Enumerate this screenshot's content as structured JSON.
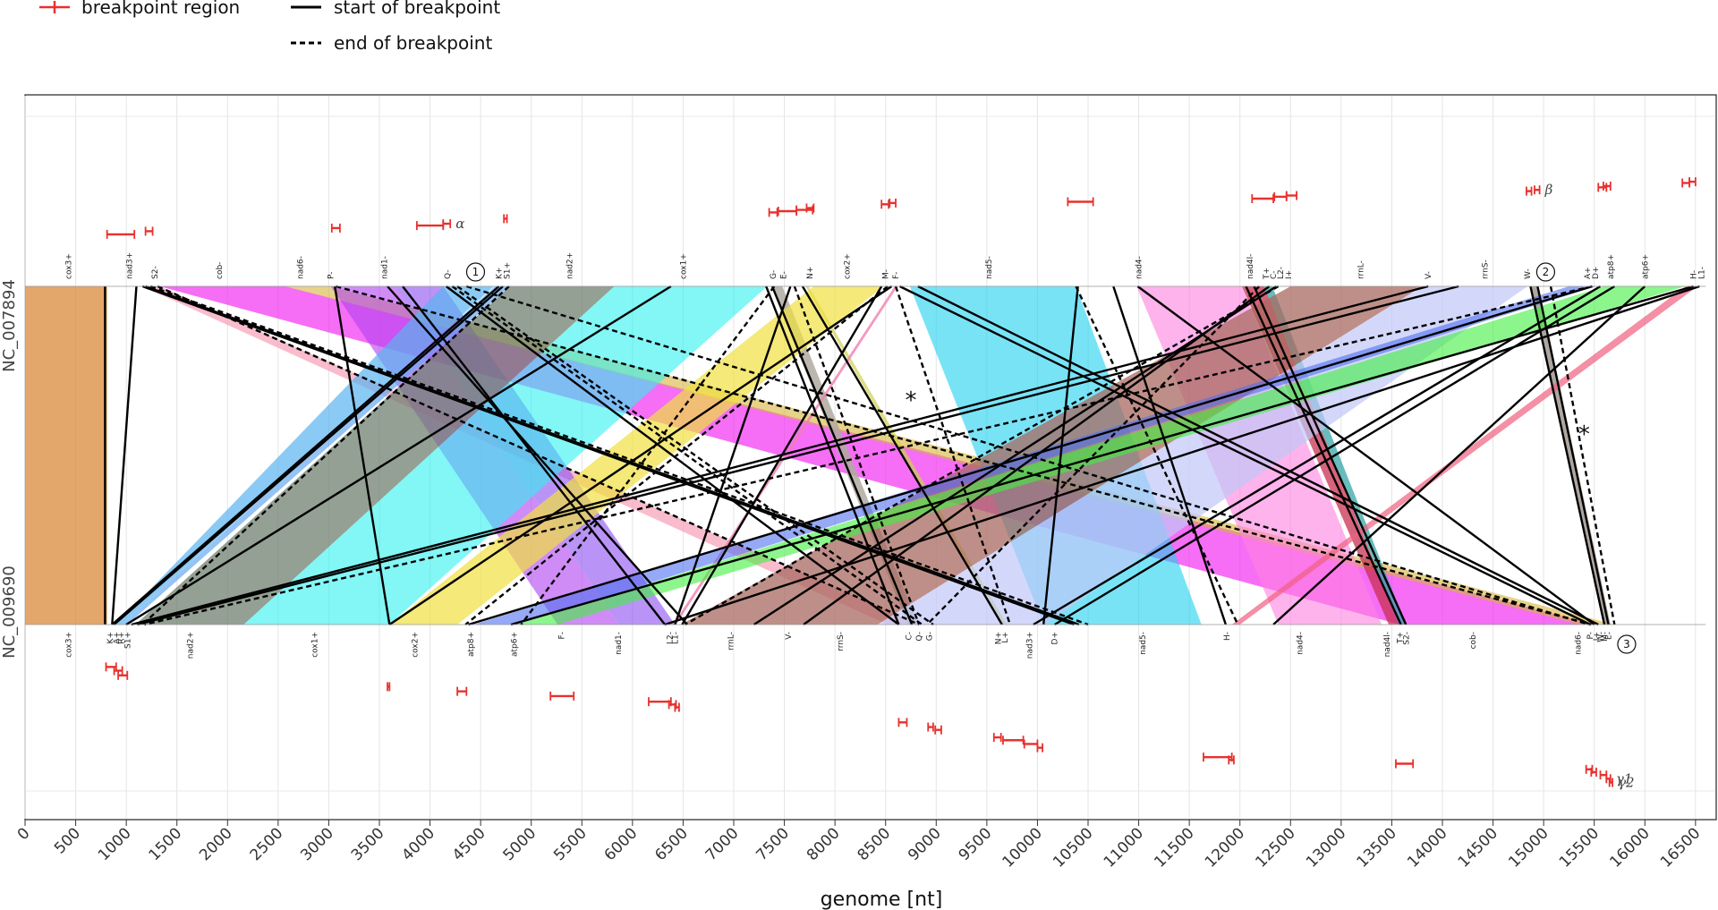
{
  "chart_data": {
    "type": "comparative-genome-map",
    "xlabel": "genome [nt]",
    "xlim": [
      0,
      16600
    ],
    "xticks": [
      0,
      500,
      1000,
      1500,
      2000,
      2500,
      3000,
      3500,
      4000,
      4500,
      5000,
      5500,
      6000,
      6500,
      7000,
      7500,
      8000,
      8500,
      9000,
      9500,
      10000,
      10500,
      11000,
      11500,
      12000,
      12500,
      13000,
      13500,
      14000,
      14500,
      15000,
      15500,
      16000,
      16500
    ],
    "legend": [
      {
        "name": "breakpoint region",
        "style": "red-errorbar"
      },
      {
        "name": "start of breakpoint",
        "style": "solid"
      },
      {
        "name": "end of breakpoint",
        "style": "dashed"
      }
    ],
    "genomes": {
      "top": "NC_007894",
      "bottom": "NC_009690"
    },
    "top_genes": [
      {
        "label": "cox3+",
        "pos": 430
      },
      {
        "label": "nad3+",
        "pos": 1030
      },
      {
        "label": "S2-",
        "pos": 1280
      },
      {
        "label": "cob-",
        "pos": 1920
      },
      {
        "label": "nad6-",
        "pos": 2720
      },
      {
        "label": "P-",
        "pos": 3020
      },
      {
        "label": "nad1-",
        "pos": 3550
      },
      {
        "label": "Q-",
        "pos": 4170
      },
      {
        "label": "K+",
        "pos": 4680
      },
      {
        "label": "S1+",
        "pos": 4760
      },
      {
        "label": "nad2+",
        "pos": 5380
      },
      {
        "label": "cox1+",
        "pos": 6500
      },
      {
        "label": "G-",
        "pos": 7390
      },
      {
        "label": "E-",
        "pos": 7490
      },
      {
        "label": "N+",
        "pos": 7750
      },
      {
        "label": "cox2+",
        "pos": 8120
      },
      {
        "label": "M-",
        "pos": 8500
      },
      {
        "label": "F-",
        "pos": 8600
      },
      {
        "label": "nad5-",
        "pos": 9520
      },
      {
        "label": "nad4-",
        "pos": 11000
      },
      {
        "label": "nad4l-",
        "pos": 12100
      },
      {
        "label": "T+",
        "pos": 12260
      },
      {
        "label": "C-",
        "pos": 12330
      },
      {
        "label": "L2-",
        "pos": 12400
      },
      {
        "label": "I+",
        "pos": 12480
      },
      {
        "label": "rrnL-",
        "pos": 13190
      },
      {
        "label": "V-",
        "pos": 13860
      },
      {
        "label": "rrnS-",
        "pos": 14420
      },
      {
        "label": "W-",
        "pos": 14840
      },
      {
        "label": "A+",
        "pos": 15430
      },
      {
        "label": "D+",
        "pos": 15510
      },
      {
        "label": "atp8+",
        "pos": 15660
      },
      {
        "label": "atp6+",
        "pos": 16000
      },
      {
        "label": "H-",
        "pos": 16480
      },
      {
        "label": "L1-",
        "pos": 16560
      }
    ],
    "bottom_genes": [
      {
        "label": "cox3+",
        "pos": 430
      },
      {
        "label": "K+",
        "pos": 840
      },
      {
        "label": "A+",
        "pos": 900
      },
      {
        "label": "R+",
        "pos": 950
      },
      {
        "label": "S1+",
        "pos": 1010
      },
      {
        "label": "nad2+",
        "pos": 1630
      },
      {
        "label": "cox1+",
        "pos": 2860
      },
      {
        "label": "cox2+",
        "pos": 3850
      },
      {
        "label": "atp8+",
        "pos": 4400
      },
      {
        "label": "atp6+",
        "pos": 4830
      },
      {
        "label": "F-",
        "pos": 5300
      },
      {
        "label": "nad1-",
        "pos": 5860
      },
      {
        "label": "L2-",
        "pos": 6370
      },
      {
        "label": "L1-",
        "pos": 6420
      },
      {
        "label": "rrnL-",
        "pos": 6970
      },
      {
        "label": "V-",
        "pos": 7540
      },
      {
        "label": "rrnS-",
        "pos": 8050
      },
      {
        "label": "C-",
        "pos": 8730
      },
      {
        "label": "Q-",
        "pos": 8830
      },
      {
        "label": "G-",
        "pos": 8930
      },
      {
        "label": "N+",
        "pos": 9610
      },
      {
        "label": "L+",
        "pos": 9680
      },
      {
        "label": "nad3+",
        "pos": 9920
      },
      {
        "label": "D+",
        "pos": 10170
      },
      {
        "label": "nad5-",
        "pos": 11040
      },
      {
        "label": "H-",
        "pos": 11870
      },
      {
        "label": "nad4-",
        "pos": 12590
      },
      {
        "label": "nad4l-",
        "pos": 13450
      },
      {
        "label": "T+",
        "pos": 13580
      },
      {
        "label": "S2-",
        "pos": 13640
      },
      {
        "label": "cob-",
        "pos": 14300
      },
      {
        "label": "nad6-",
        "pos": 15340
      },
      {
        "label": "P-",
        "pos": 15460
      },
      {
        "label": "I+",
        "pos": 15520
      },
      {
        "label": "W-",
        "pos": 15560
      },
      {
        "label": "M-",
        "pos": 15600
      },
      {
        "label": "E-",
        "pos": 15640
      }
    ],
    "circled_markers": [
      {
        "label": "1",
        "track": "top",
        "pos": 4450
      },
      {
        "label": "2",
        "track": "top",
        "pos": 15020
      },
      {
        "label": "3",
        "track": "bottom",
        "pos": 15820
      }
    ],
    "star_markers": [
      {
        "label": "*",
        "pos": 8750,
        "level": 0.36
      },
      {
        "label": "*",
        "pos": 15400,
        "level": 0.46
      }
    ],
    "top_breakpoints": [
      {
        "x0": 810,
        "x1": 1080,
        "level": 0.83
      },
      {
        "x0": 1190,
        "x1": 1260,
        "level": 0.88
      },
      {
        "x0": 3030,
        "x1": 3110,
        "level": 0.93
      },
      {
        "x0": 3870,
        "x1": 4130,
        "level": 0.97
      },
      {
        "x0": 4130,
        "x1": 4200,
        "level": 1.0,
        "greek": "α"
      },
      {
        "x0": 4730,
        "x1": 4760,
        "level": 1.08
      },
      {
        "x0": 7350,
        "x1": 7430,
        "level": 1.18
      },
      {
        "x0": 7440,
        "x1": 7620,
        "level": 1.2
      },
      {
        "x0": 7620,
        "x1": 7780,
        "level": 1.22
      },
      {
        "x0": 7720,
        "x1": 7790,
        "level": 1.25
      },
      {
        "x0": 8460,
        "x1": 8530,
        "level": 1.31
      },
      {
        "x0": 8540,
        "x1": 8600,
        "level": 1.33
      },
      {
        "x0": 10300,
        "x1": 10550,
        "level": 1.35
      },
      {
        "x0": 12120,
        "x1": 12330,
        "level": 1.4
      },
      {
        "x0": 12340,
        "x1": 12460,
        "level": 1.43
      },
      {
        "x0": 12460,
        "x1": 12560,
        "level": 1.45
      },
      {
        "x0": 14830,
        "x1": 14880,
        "level": 1.52
      },
      {
        "x0": 14910,
        "x1": 14960,
        "level": 1.54,
        "greek": "β"
      },
      {
        "x0": 15540,
        "x1": 15620,
        "level": 1.58
      },
      {
        "x0": 15590,
        "x1": 15660,
        "level": 1.6
      },
      {
        "x0": 16370,
        "x1": 16440,
        "level": 1.65
      },
      {
        "x0": 16440,
        "x1": 16500,
        "level": 1.67
      }
    ],
    "bottom_breakpoints": [
      {
        "x0": 800,
        "x1": 900,
        "level": 0.07
      },
      {
        "x0": 880,
        "x1": 960,
        "level": 0.11
      },
      {
        "x0": 920,
        "x1": 1010,
        "level": 0.16
      },
      {
        "x0": 3580,
        "x1": 3600,
        "level": 0.28
      },
      {
        "x0": 4270,
        "x1": 4360,
        "level": 0.33
      },
      {
        "x0": 5190,
        "x1": 5420,
        "level": 0.38
      },
      {
        "x0": 6160,
        "x1": 6380,
        "level": 0.44
      },
      {
        "x0": 6360,
        "x1": 6430,
        "level": 0.47
      },
      {
        "x0": 6420,
        "x1": 6460,
        "level": 0.5
      },
      {
        "x0": 8630,
        "x1": 8710,
        "level": 0.66
      },
      {
        "x0": 8920,
        "x1": 8970,
        "level": 0.71
      },
      {
        "x0": 8990,
        "x1": 9050,
        "level": 0.74
      },
      {
        "x0": 9570,
        "x1": 9640,
        "level": 0.82
      },
      {
        "x0": 9660,
        "x1": 9860,
        "level": 0.85
      },
      {
        "x0": 9870,
        "x1": 10000,
        "level": 0.89
      },
      {
        "x0": 10000,
        "x1": 10050,
        "level": 0.93
      },
      {
        "x0": 11640,
        "x1": 11920,
        "level": 1.03
      },
      {
        "x0": 11890,
        "x1": 11940,
        "level": 1.06
      },
      {
        "x0": 13540,
        "x1": 13710,
        "level": 1.1
      },
      {
        "x0": 15420,
        "x1": 15480,
        "level": 1.16
      },
      {
        "x0": 15470,
        "x1": 15520,
        "level": 1.19
      },
      {
        "x0": 15560,
        "x1": 15620,
        "level": 1.22
      },
      {
        "x0": 15620,
        "x1": 15660,
        "level": 1.26,
        "greek": "γ1"
      },
      {
        "x0": 15650,
        "x1": 15680,
        "level": 1.3,
        "greek": "γ2"
      }
    ],
    "bands": [
      {
        "t0": 0,
        "t1": 810,
        "b0": 0,
        "b1": 810,
        "color": "#d9883a",
        "opacity": 0.75
      },
      {
        "t0": 1160,
        "t1": 1330,
        "b0": 8520,
        "b1": 8820,
        "color": "#f7a0b8",
        "opacity": 0.7
      },
      {
        "t0": 1330,
        "t1": 2570,
        "b0": 13580,
        "b1": 15520,
        "color": "#f020f0",
        "opacity": 0.65
      },
      {
        "t0": 2570,
        "t1": 3020,
        "b0": 15350,
        "b1": 15700,
        "color": "#d7b43a",
        "opacity": 0.6
      },
      {
        "t0": 3020,
        "t1": 3650,
        "b0": 5260,
        "b1": 5860,
        "color": "#b040f0",
        "opacity": 0.6
      },
      {
        "t0": 3650,
        "t1": 4130,
        "b0": 5860,
        "b1": 6420,
        "color": "#8a4cf0",
        "opacity": 0.6
      },
      {
        "t0": 4130,
        "t1": 4630,
        "b0": 900,
        "b1": 960,
        "color": "#5ab4f0",
        "opacity": 0.7
      },
      {
        "t0": 4640,
        "t1": 4790,
        "b0": 960,
        "b1": 1010,
        "color": "#66aaf0",
        "opacity": 0.7
      },
      {
        "t0": 4790,
        "t1": 5820,
        "b0": 1090,
        "b1": 2160,
        "color": "#708070",
        "opacity": 0.75
      },
      {
        "t0": 5820,
        "t1": 7330,
        "b0": 2160,
        "b1": 3600,
        "color": "#30f0f0",
        "opacity": 0.6
      },
      {
        "t0": 7370,
        "t1": 7480,
        "b0": 8720,
        "b1": 8820,
        "color": "#b0aaa0",
        "opacity": 0.85
      },
      {
        "t0": 7710,
        "t1": 7740,
        "b0": 9640,
        "b1": 9700,
        "color": "#d0d050",
        "opacity": 0.7
      },
      {
        "t0": 7790,
        "t1": 8480,
        "b0": 3600,
        "b1": 4270,
        "color": "#f0e040",
        "opacity": 0.7
      },
      {
        "t0": 8590,
        "t1": 8620,
        "b0": 6400,
        "b1": 6430,
        "color": "#f080b0",
        "opacity": 0.8
      },
      {
        "t0": 8740,
        "t1": 10380,
        "b0": 10060,
        "b1": 11620,
        "color": "#20d0f0",
        "opacity": 0.6
      },
      {
        "t0": 10980,
        "t1": 12020,
        "b0": 12380,
        "b1": 13400,
        "color": "#ff80e0",
        "opacity": 0.6
      },
      {
        "t0": 12020,
        "t1": 12240,
        "b0": 13470,
        "b1": 13570,
        "color": "#c83050",
        "opacity": 0.75
      },
      {
        "t0": 12240,
        "t1": 12320,
        "b0": 13570,
        "b1": 13640,
        "color": "#28a0a0",
        "opacity": 0.7
      },
      {
        "t0": 12500,
        "t1": 13800,
        "b0": 6480,
        "b1": 8420,
        "color": "#a86a60",
        "opacity": 0.75
      },
      {
        "t0": 13800,
        "t1": 14840,
        "b0": 8420,
        "b1": 10080,
        "color": "#c0c8f8",
        "opacity": 0.7
      },
      {
        "t0": 14870,
        "t1": 14950,
        "b0": 15600,
        "b1": 15660,
        "color": "#a09890",
        "opacity": 0.85
      },
      {
        "t0": 15250,
        "t1": 15520,
        "b0": 4430,
        "b1": 4860,
        "color": "#5070f0",
        "opacity": 0.6
      },
      {
        "t0": 15600,
        "t1": 16400,
        "b0": 4860,
        "b1": 5260,
        "color": "#40f040",
        "opacity": 0.6
      },
      {
        "t0": 16400,
        "t1": 16520,
        "b0": 11920,
        "b1": 12000,
        "color": "#f06080",
        "opacity": 0.7
      }
    ],
    "solid_lines": [
      [
        790,
        790
      ],
      [
        1100,
        860
      ],
      [
        1160,
        10360
      ],
      [
        1190,
        10410
      ],
      [
        3060,
        3600
      ],
      [
        3580,
        6540
      ],
      [
        3730,
        6320
      ],
      [
        4160,
        8630
      ],
      [
        4680,
        860
      ],
      [
        4720,
        880
      ],
      [
        6380,
        1000
      ],
      [
        7320,
        8630
      ],
      [
        7380,
        8760
      ],
      [
        7560,
        6420
      ],
      [
        7680,
        9650
      ],
      [
        8460,
        6490
      ],
      [
        8560,
        3600
      ],
      [
        8640,
        15460
      ],
      [
        8820,
        15540
      ],
      [
        10400,
        10060
      ],
      [
        10750,
        11860
      ],
      [
        10990,
        15500
      ],
      [
        12060,
        13590
      ],
      [
        12140,
        13640
      ],
      [
        12290,
        7690
      ],
      [
        12360,
        7200
      ],
      [
        13860,
        1050
      ],
      [
        14160,
        1110
      ],
      [
        14870,
        15600
      ],
      [
        14940,
        15640
      ],
      [
        15480,
        4380
      ],
      [
        15560,
        9960
      ],
      [
        15700,
        10170
      ],
      [
        16000,
        12330
      ],
      [
        16480,
        4800
      ],
      [
        16540,
        6320
      ]
    ],
    "dashed_lines": [
      [
        1240,
        10500
      ],
      [
        1310,
        8830
      ],
      [
        3070,
        15470
      ],
      [
        4220,
        8860
      ],
      [
        4270,
        8970
      ],
      [
        4360,
        15450
      ],
      [
        4780,
        1160
      ],
      [
        7400,
        4900
      ],
      [
        7600,
        8830
      ],
      [
        8520,
        4350
      ],
      [
        8600,
        9730
      ],
      [
        10380,
        11980
      ],
      [
        12190,
        8910
      ],
      [
        12380,
        6520
      ],
      [
        15070,
        15700
      ],
      [
        15480,
        1180
      ]
    ]
  }
}
